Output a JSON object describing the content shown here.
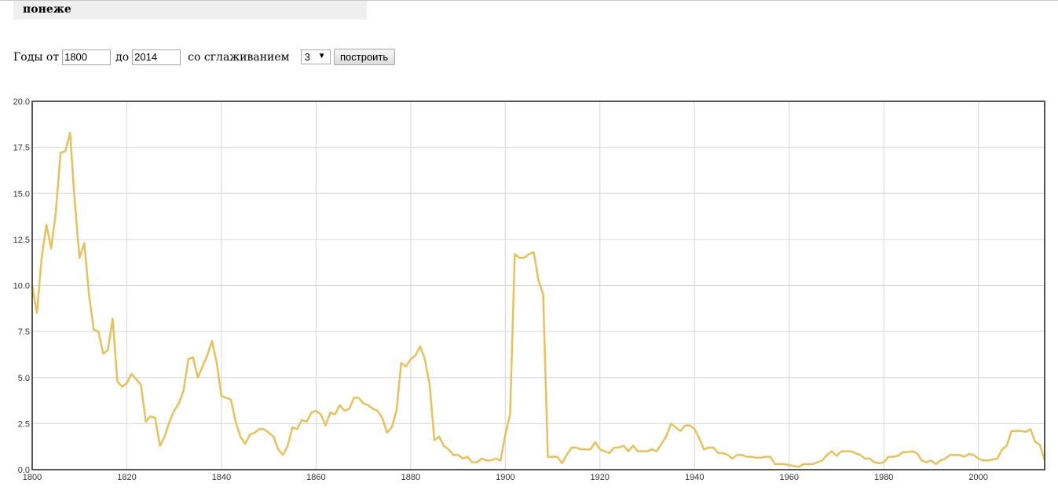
{
  "header": {
    "word": "понеже"
  },
  "controls": {
    "years_from_label": "Годы от",
    "year_from": "1800",
    "to_label": "до",
    "year_to": "2014",
    "smoothing_label": "со сглаживанием",
    "smoothing_value": "3",
    "build_button": "построить"
  },
  "colors": {
    "line": "#e8c15a",
    "grid": "#d6d6d6",
    "frame": "#555555",
    "header_bg": "#efefef"
  },
  "icons": {
    "select_arrow": "dropdown-arrow-icon"
  },
  "chart_data": {
    "type": "line",
    "title": "",
    "xlabel": "",
    "ylabel": "",
    "xlim": [
      1800,
      2014
    ],
    "ylim": [
      0,
      20
    ],
    "grid": true,
    "x_ticks": [
      "1800",
      "1820",
      "1840",
      "1860",
      "1880",
      "1900",
      "1920",
      "1940",
      "1960",
      "1980",
      "2000"
    ],
    "y_ticks": [
      "0.0",
      "2.5",
      "5.0",
      "7.5",
      "10.0",
      "12.5",
      "15.0",
      "17.5",
      "20.0"
    ],
    "series": [
      {
        "points": [
          [
            1800,
            10.0
          ],
          [
            1801,
            8.5
          ],
          [
            1802,
            11.5
          ],
          [
            1803,
            13.3
          ],
          [
            1804,
            12.0
          ],
          [
            1805,
            14.0
          ],
          [
            1806,
            17.2
          ],
          [
            1807,
            17.3
          ],
          [
            1808,
            18.3
          ],
          [
            1809,
            14.5
          ],
          [
            1810,
            11.5
          ],
          [
            1811,
            12.3
          ],
          [
            1812,
            9.5
          ],
          [
            1813,
            7.6
          ],
          [
            1814,
            7.5
          ],
          [
            1815,
            6.3
          ],
          [
            1816,
            6.5
          ],
          [
            1817,
            8.2
          ],
          [
            1818,
            4.8
          ],
          [
            1819,
            4.5
          ],
          [
            1820,
            4.7
          ],
          [
            1821,
            5.2
          ],
          [
            1822,
            4.9
          ],
          [
            1823,
            4.6
          ],
          [
            1824,
            2.6
          ],
          [
            1825,
            2.9
          ],
          [
            1826,
            2.8
          ],
          [
            1827,
            1.3
          ],
          [
            1828,
            1.8
          ],
          [
            1829,
            2.6
          ],
          [
            1830,
            3.2
          ],
          [
            1831,
            3.6
          ],
          [
            1832,
            4.3
          ],
          [
            1833,
            6.0
          ],
          [
            1834,
            6.1
          ],
          [
            1835,
            5.0
          ],
          [
            1836,
            5.6
          ],
          [
            1837,
            6.2
          ],
          [
            1838,
            7.0
          ],
          [
            1839,
            5.8
          ],
          [
            1840,
            4.0
          ],
          [
            1841,
            3.9
          ],
          [
            1842,
            3.8
          ],
          [
            1843,
            2.6
          ],
          [
            1844,
            1.8
          ],
          [
            1845,
            1.4
          ],
          [
            1846,
            1.9
          ],
          [
            1847,
            2.0
          ],
          [
            1848,
            2.2
          ],
          [
            1849,
            2.2
          ],
          [
            1850,
            2.0
          ],
          [
            1851,
            1.8
          ],
          [
            1852,
            1.1
          ],
          [
            1853,
            0.8
          ],
          [
            1854,
            1.3
          ],
          [
            1855,
            2.3
          ],
          [
            1856,
            2.2
          ],
          [
            1857,
            2.7
          ],
          [
            1858,
            2.6
          ],
          [
            1859,
            3.1
          ],
          [
            1860,
            3.2
          ],
          [
            1861,
            3.0
          ],
          [
            1862,
            2.4
          ],
          [
            1863,
            3.1
          ],
          [
            1864,
            3.0
          ],
          [
            1865,
            3.5
          ],
          [
            1866,
            3.2
          ],
          [
            1867,
            3.3
          ],
          [
            1868,
            3.9
          ],
          [
            1869,
            3.9
          ],
          [
            1870,
            3.6
          ],
          [
            1871,
            3.5
          ],
          [
            1872,
            3.3
          ],
          [
            1873,
            3.2
          ],
          [
            1874,
            2.8
          ],
          [
            1875,
            2.0
          ],
          [
            1876,
            2.3
          ],
          [
            1877,
            3.2
          ],
          [
            1878,
            5.8
          ],
          [
            1879,
            5.6
          ],
          [
            1880,
            6.0
          ],
          [
            1881,
            6.2
          ],
          [
            1882,
            6.7
          ],
          [
            1883,
            6.0
          ],
          [
            1884,
            4.6
          ],
          [
            1885,
            1.6
          ],
          [
            1886,
            1.8
          ],
          [
            1887,
            1.3
          ],
          [
            1888,
            1.1
          ],
          [
            1889,
            0.8
          ],
          [
            1890,
            0.8
          ],
          [
            1891,
            0.6
          ],
          [
            1892,
            0.7
          ],
          [
            1893,
            0.4
          ],
          [
            1894,
            0.4
          ],
          [
            1895,
            0.6
          ],
          [
            1896,
            0.5
          ],
          [
            1897,
            0.5
          ],
          [
            1898,
            0.6
          ],
          [
            1899,
            0.5
          ],
          [
            1900,
            1.9
          ],
          [
            1901,
            3.0
          ],
          [
            1902,
            11.7
          ],
          [
            1903,
            11.5
          ],
          [
            1904,
            11.5
          ],
          [
            1905,
            11.7
          ],
          [
            1906,
            11.8
          ],
          [
            1907,
            10.3
          ],
          [
            1908,
            9.5
          ],
          [
            1909,
            0.7
          ],
          [
            1910,
            0.7
          ],
          [
            1911,
            0.7
          ],
          [
            1912,
            0.35
          ],
          [
            1913,
            0.8
          ],
          [
            1914,
            1.2
          ],
          [
            1915,
            1.2
          ],
          [
            1916,
            1.1
          ],
          [
            1917,
            1.1
          ],
          [
            1918,
            1.1
          ],
          [
            1919,
            1.5
          ],
          [
            1920,
            1.1
          ],
          [
            1921,
            1.0
          ],
          [
            1922,
            0.9
          ],
          [
            1923,
            1.2
          ],
          [
            1924,
            1.2
          ],
          [
            1925,
            1.3
          ],
          [
            1926,
            1.0
          ],
          [
            1927,
            1.3
          ],
          [
            1928,
            1.0
          ],
          [
            1929,
            1.0
          ],
          [
            1930,
            1.0
          ],
          [
            1931,
            1.1
          ],
          [
            1932,
            1.0
          ],
          [
            1933,
            1.4
          ],
          [
            1934,
            1.8
          ],
          [
            1935,
            2.5
          ],
          [
            1936,
            2.3
          ],
          [
            1937,
            2.1
          ],
          [
            1938,
            2.4
          ],
          [
            1939,
            2.4
          ],
          [
            1940,
            2.2
          ],
          [
            1941,
            1.7
          ],
          [
            1942,
            1.1
          ],
          [
            1943,
            1.2
          ],
          [
            1944,
            1.2
          ],
          [
            1945,
            0.9
          ],
          [
            1946,
            0.9
          ],
          [
            1947,
            0.8
          ],
          [
            1948,
            0.6
          ],
          [
            1949,
            0.8
          ],
          [
            1950,
            0.8
          ],
          [
            1951,
            0.7
          ],
          [
            1952,
            0.7
          ],
          [
            1953,
            0.65
          ],
          [
            1954,
            0.65
          ],
          [
            1955,
            0.7
          ],
          [
            1956,
            0.7
          ],
          [
            1957,
            0.3
          ],
          [
            1958,
            0.3
          ],
          [
            1959,
            0.3
          ],
          [
            1960,
            0.25
          ],
          [
            1961,
            0.2
          ],
          [
            1962,
            0.15
          ],
          [
            1963,
            0.3
          ],
          [
            1964,
            0.3
          ],
          [
            1965,
            0.3
          ],
          [
            1966,
            0.4
          ],
          [
            1967,
            0.5
          ],
          [
            1968,
            0.8
          ],
          [
            1969,
            1.0
          ],
          [
            1970,
            0.75
          ],
          [
            1971,
            1.0
          ],
          [
            1972,
            1.0
          ],
          [
            1973,
            1.0
          ],
          [
            1974,
            0.9
          ],
          [
            1975,
            0.8
          ],
          [
            1976,
            0.6
          ],
          [
            1977,
            0.6
          ],
          [
            1978,
            0.4
          ],
          [
            1979,
            0.35
          ],
          [
            1980,
            0.4
          ],
          [
            1981,
            0.7
          ],
          [
            1982,
            0.7
          ],
          [
            1983,
            0.75
          ],
          [
            1984,
            0.95
          ],
          [
            1985,
            0.95
          ],
          [
            1986,
            1.0
          ],
          [
            1987,
            0.9
          ],
          [
            1988,
            0.5
          ],
          [
            1989,
            0.4
          ],
          [
            1990,
            0.5
          ],
          [
            1991,
            0.3
          ],
          [
            1992,
            0.5
          ],
          [
            1993,
            0.6
          ],
          [
            1994,
            0.8
          ],
          [
            1995,
            0.8
          ],
          [
            1996,
            0.8
          ],
          [
            1997,
            0.7
          ],
          [
            1998,
            0.85
          ],
          [
            1999,
            0.8
          ],
          [
            2000,
            0.6
          ],
          [
            2001,
            0.5
          ],
          [
            2002,
            0.5
          ],
          [
            2003,
            0.55
          ],
          [
            2004,
            0.6
          ],
          [
            2005,
            1.1
          ],
          [
            2006,
            1.3
          ],
          [
            2007,
            2.1
          ],
          [
            2008,
            2.1
          ],
          [
            2009,
            2.1
          ],
          [
            2010,
            2.05
          ],
          [
            2011,
            2.2
          ],
          [
            2012,
            1.5
          ],
          [
            2013,
            1.35
          ],
          [
            2014,
            0.5
          ]
        ]
      }
    ]
  }
}
